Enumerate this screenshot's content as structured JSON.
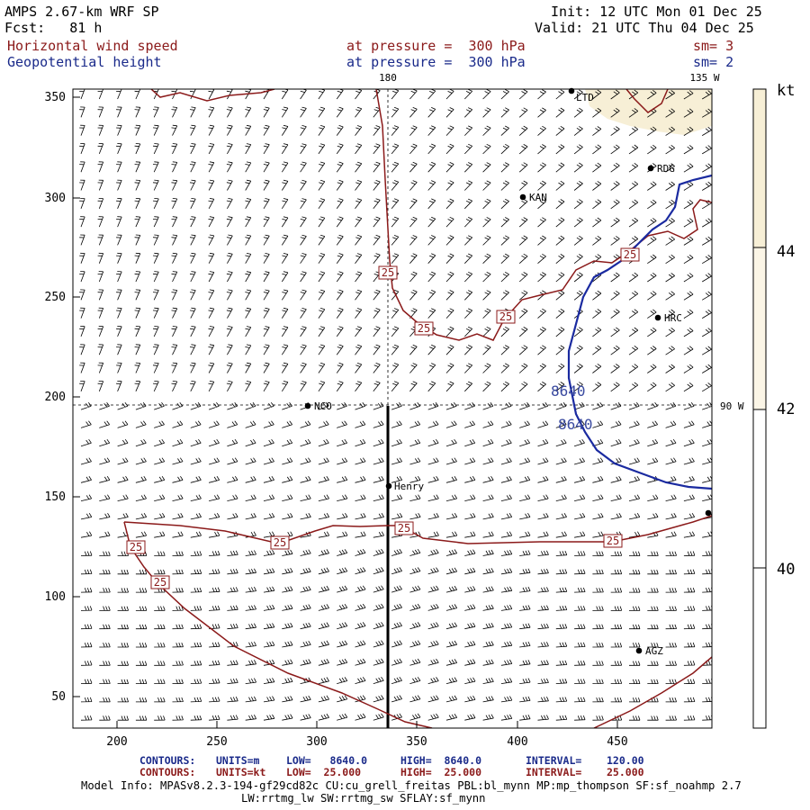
{
  "header": {
    "model_title": "AMPS 2.67-km WRF SP",
    "forecast": "Fcst:   81 h",
    "init": "Init: 12 UTC Mon 01 Dec 25",
    "valid": "Valid: 21 UTC Thu 04 Dec 25",
    "field1_name": "Horizontal wind speed",
    "field1_level": "at pressure =  300 hPa",
    "field1_sm": "sm= 3",
    "field2_name": "Geopotential height",
    "field2_level": "at pressure =  300 hPa",
    "field2_sm": "sm= 2"
  },
  "map": {
    "x_ticks": [
      "200",
      "250",
      "300",
      "350",
      "400",
      "450"
    ],
    "y_ticks": [
      "350",
      "300",
      "250",
      "200",
      "150",
      "100",
      "50"
    ],
    "meridian_labels": [
      "180",
      "135 W",
      "90 W"
    ],
    "stations": [
      "LTD",
      "RDG",
      "KAN",
      "HRC",
      "NCO",
      "Henry",
      "AGZ"
    ],
    "wind_contour_label": "25",
    "height_contour_label": "8640"
  },
  "colorbar": {
    "unit": "kt",
    "labels": [
      "44",
      "42",
      "40"
    ],
    "shade_color": "#f7efd6"
  },
  "footer": {
    "contours_blue_prefix": "CONTOURS:",
    "contours_blue_units": "UNITS=m",
    "contours_blue_low": "LOW=   8640.0",
    "contours_blue_high": "HIGH=  8640.0",
    "contours_blue_interval": "INTERVAL=    120.00",
    "contours_red_prefix": "CONTOURS:",
    "contours_red_units": "UNITS=kt",
    "contours_red_low": "LOW=  25.000",
    "contours_red_high": "HIGH=  25.000",
    "contours_red_interval": "INTERVAL=    25.000",
    "model_info_1": "Model Info: MPASv8.2.3-194-gf29cd82c CU:cu_grell_freitas PBL:bl_mynn MP:mp_thompson SF:sf_noahmp 2.7",
    "model_info_2": "LW:rrtmg_lw SW:rrtmg_sw SFLAY:sf_mynn"
  },
  "colors": {
    "wind_contour": "#8b1a1a",
    "height_contour": "#1a2aa0"
  }
}
